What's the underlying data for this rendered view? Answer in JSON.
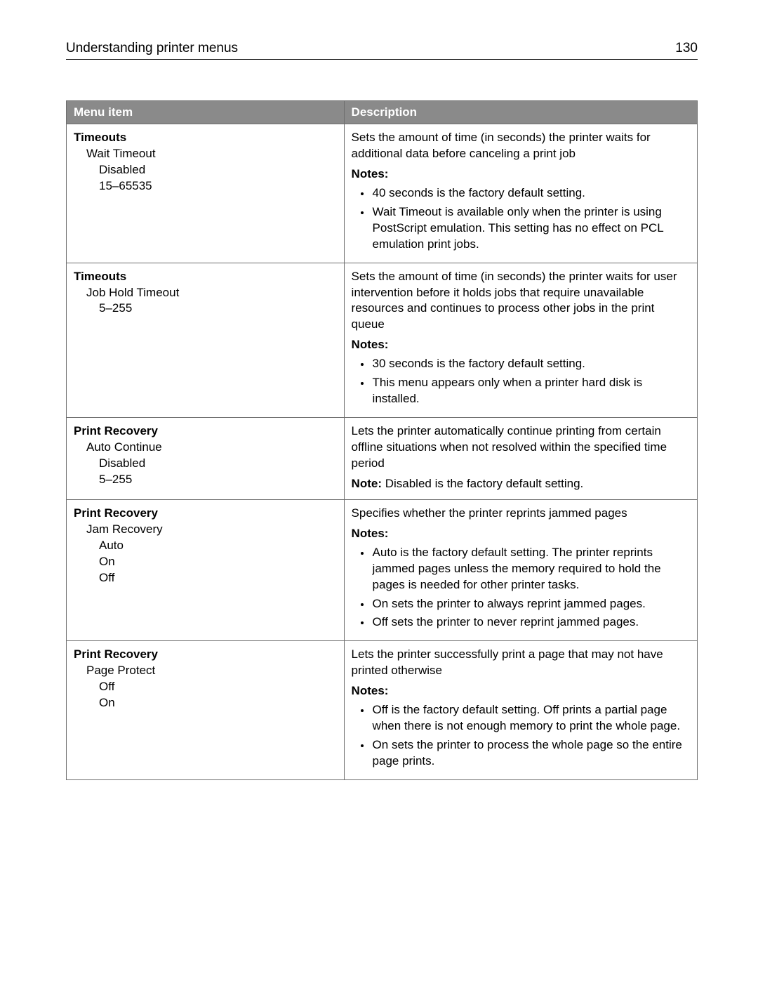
{
  "header": {
    "title": "Understanding printer menus",
    "page_number": "130"
  },
  "table": {
    "columns": {
      "menu_item": "Menu item",
      "description": "Description"
    },
    "rows": [
      {
        "menu": {
          "root": "Timeouts",
          "l1": "Wait Timeout",
          "l2a": "Disabled",
          "l2b": "15–65535"
        },
        "desc": {
          "para": "Sets the amount of time (in seconds) the printer waits for additional data before canceling a print job",
          "notes_label": "Notes:",
          "notes": [
            "40 seconds is the factory default setting.",
            "Wait Timeout is available only when the printer is using PostScript emulation. This setting has no effect on PCL emulation print jobs."
          ]
        }
      },
      {
        "menu": {
          "root": "Timeouts",
          "l1": "Job Hold Timeout",
          "l2a": "5–255"
        },
        "desc": {
          "para": "Sets the amount of time (in seconds) the printer waits for user intervention before it holds jobs that require unavailable resources and continues to process other jobs in the print queue",
          "notes_label": "Notes:",
          "notes": [
            "30 seconds is the factory default setting.",
            "This menu appears only when a printer hard disk is installed."
          ]
        }
      },
      {
        "menu": {
          "root": "Print Recovery",
          "l1": "Auto Continue",
          "l2a": "Disabled",
          "l2b": "5–255"
        },
        "desc": {
          "para": "Lets the printer automatically continue printing from certain offline situations when not resolved within the specified time period",
          "note_label": "Note:",
          "note_text": " Disabled is the factory default setting."
        }
      },
      {
        "menu": {
          "root": "Print Recovery",
          "l1": "Jam Recovery",
          "l2a": "Auto",
          "l2b": "On",
          "l2c": "Off"
        },
        "desc": {
          "para": "Specifies whether the printer reprints jammed pages",
          "notes_label": "Notes:",
          "notes": [
            "Auto is the factory default setting. The printer reprints jammed pages unless the memory required to hold the pages is needed for other printer tasks.",
            "On sets the printer to always reprint jammed pages.",
            "Off sets the printer to never reprint jammed pages."
          ]
        }
      },
      {
        "menu": {
          "root": "Print Recovery",
          "l1": "Page Protect",
          "l2a": "Off",
          "l2b": "On"
        },
        "desc": {
          "para": "Lets the printer successfully print a page that may not have printed otherwise",
          "notes_label": "Notes:",
          "notes": [
            "Off is the factory default setting. Off prints a partial page when there is not enough memory to print the whole page.",
            "On sets the printer to process the whole page so the entire page prints."
          ]
        }
      }
    ]
  }
}
